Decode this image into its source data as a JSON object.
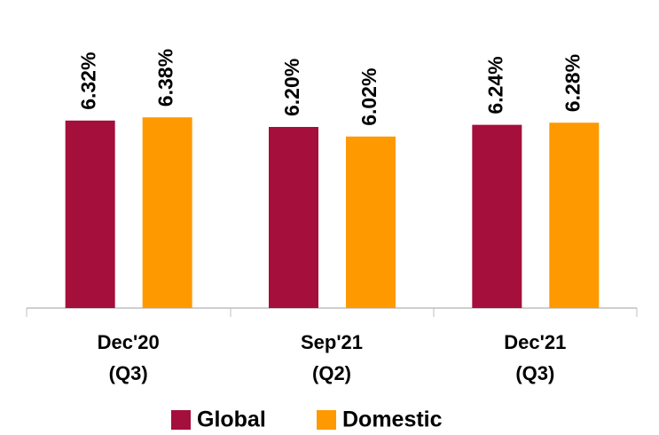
{
  "chart_data": {
    "type": "bar",
    "categories": [
      "Dec'20 (Q3)",
      "Sep'21 (Q2)",
      "Dec'21 (Q3)"
    ],
    "series": [
      {
        "name": "Global",
        "color": "#a50f3c",
        "values": [
          6.32,
          6.2,
          6.24
        ],
        "value_labels": [
          "6.32%",
          "6.20%",
          "6.24%"
        ]
      },
      {
        "name": "Domestic",
        "color": "#ff9900",
        "values": [
          6.38,
          6.02,
          6.28
        ],
        "value_labels": [
          "6.38%",
          "6.02%",
          "6.28%"
        ]
      }
    ],
    "ylim": [
      2.8,
      7.5
    ]
  }
}
